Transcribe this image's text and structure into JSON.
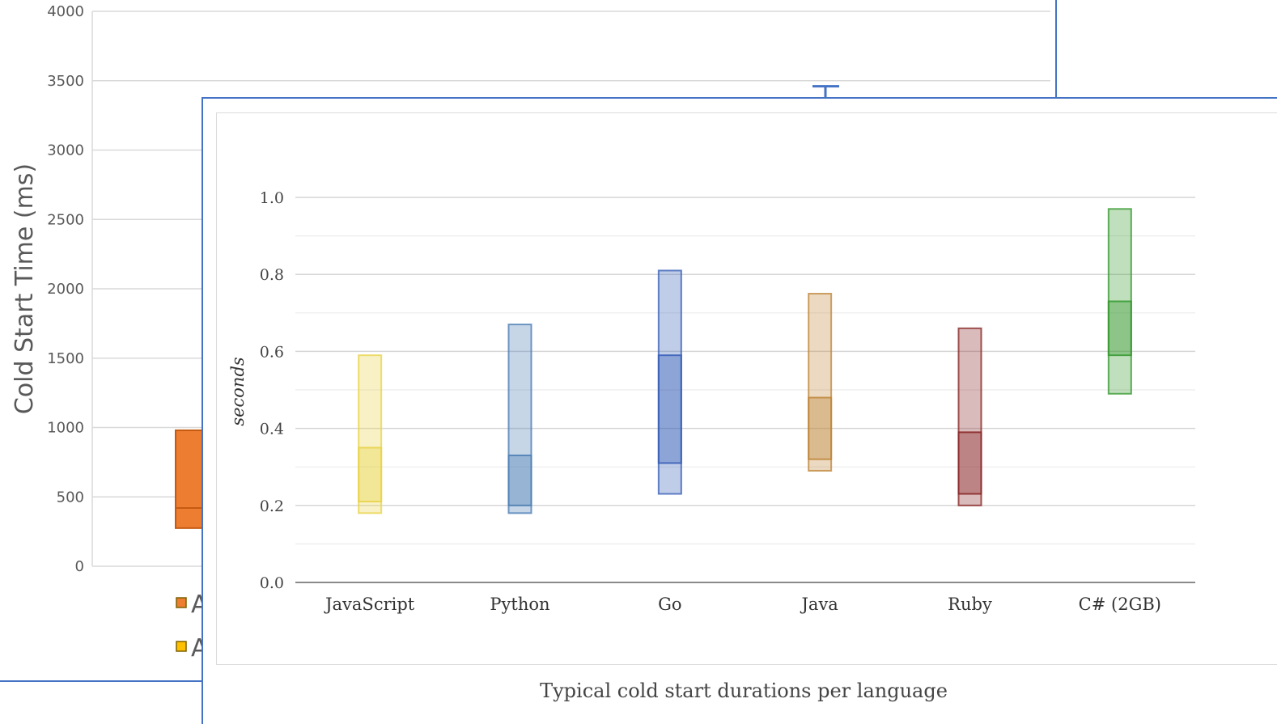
{
  "chart_data": [
    {
      "type": "box",
      "ylabel": "Cold Start Time (ms)",
      "ylim": [
        0,
        4000
      ],
      "yticks": [
        0,
        500,
        1000,
        1500,
        2000,
        2500,
        3000,
        3500,
        4000
      ],
      "grid": true,
      "visible_boxes": [
        {
          "color": "#ed7d31",
          "low": 275,
          "median": 420,
          "high": 980
        },
        {
          "color": "#4472c4",
          "whisker_high": 3460
        }
      ],
      "legend": [
        {
          "marker_color": "#ed7d31",
          "label": "A"
        },
        {
          "marker_color": "#ffc000",
          "label": "A"
        }
      ]
    },
    {
      "type": "box",
      "title": "Typical cold start durations per language",
      "ylabel": "seconds",
      "ylim": [
        0.0,
        1.0
      ],
      "yticks": [
        "0.0",
        "0.2",
        "0.4",
        "0.6",
        "0.8",
        "1.0"
      ],
      "grid": true,
      "categories": [
        "JavaScript",
        "Python",
        "Go",
        "Java",
        "Ruby",
        "C# (2GB)"
      ],
      "series": [
        {
          "min": 0.18,
          "q1": 0.21,
          "q3": 0.35,
          "max": 0.59,
          "color": "#e8d44d"
        },
        {
          "min": 0.18,
          "q1": 0.2,
          "q3": 0.33,
          "max": 0.67,
          "color": "#4f7fb5"
        },
        {
          "min": 0.23,
          "q1": 0.31,
          "q3": 0.59,
          "max": 0.81,
          "color": "#3b62b8"
        },
        {
          "min": 0.29,
          "q1": 0.32,
          "q3": 0.48,
          "max": 0.75,
          "color": "#c08a3e"
        },
        {
          "min": 0.2,
          "q1": 0.23,
          "q3": 0.39,
          "max": 0.66,
          "color": "#8b2a2a"
        },
        {
          "min": 0.49,
          "q1": 0.59,
          "q3": 0.73,
          "max": 0.97,
          "color": "#3a9a33"
        }
      ]
    }
  ]
}
